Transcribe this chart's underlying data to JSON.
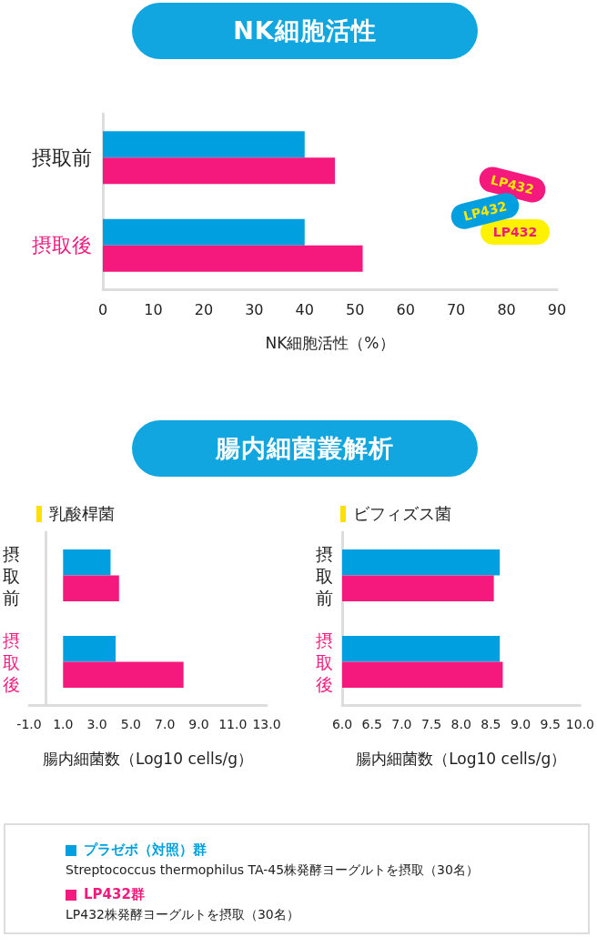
{
  "chart_data": [
    {
      "type": "bar",
      "orientation": "horizontal",
      "title": "NK細胞活性",
      "xlabel": "NK細胞活性（%）",
      "categories": [
        "摂取前",
        "摂取後"
      ],
      "series": [
        {
          "name": "プラゼボ（対照）群",
          "color": "#00a0e0",
          "values": [
            40,
            40
          ]
        },
        {
          "name": "LP432群",
          "color": "#f5197d",
          "values": [
            46,
            51.5
          ]
        }
      ],
      "xlim": [
        0,
        90
      ],
      "xticks": [
        0,
        10,
        20,
        30,
        40,
        50,
        60,
        70,
        80,
        90
      ],
      "grid": false,
      "legend": "bottom",
      "annotations": [
        "LP432",
        "LP432",
        "LP432",
        "Streptococcus thermophilus TA-45株発酵ヨーグルトを摂取（30名）",
        "LP432株発酵ヨーグルトを摂取（30名）"
      ]
    },
    {
      "type": "bar",
      "orientation": "horizontal",
      "title": "乳酸桿菌",
      "xlabel": "腸内細菌数（Log10 cells/g）",
      "categories": [
        "摂取前",
        "摂取後"
      ],
      "series": [
        {
          "color": "#00a0e0",
          "base": [
            1,
            1
          ],
          "values": [
            2.8,
            3.1
          ]
        },
        {
          "color": "#f5197d",
          "base": [
            1,
            1
          ],
          "values": [
            3.3,
            7.1
          ]
        }
      ],
      "xlim": [
        -1,
        13
      ],
      "xticks": [
        {
          "value": -1,
          "label": "-1.0"
        },
        {
          "value": 1,
          "label": "1.0"
        },
        {
          "value": 3,
          "label": "3.0"
        },
        {
          "value": 5,
          "label": "5.0"
        },
        {
          "value": 7,
          "label": "7.0"
        },
        {
          "value": 9,
          "label": "9.0"
        },
        {
          "value": 11,
          "label": "11.0"
        },
        {
          "value": 13,
          "label": "13.0"
        }
      ],
      "grid": false,
      "annotations": [
        "腸内細菌叢解析"
      ]
    },
    {
      "type": "bar",
      "orientation": "horizontal",
      "title": "ビフィズス菌",
      "xlabel": "腸内細菌数（Log10 cells/g）",
      "categories": [
        "摂取前",
        "摂取後"
      ],
      "series": [
        {
          "color": "#00a0e0",
          "values": [
            8.65,
            8.65
          ]
        },
        {
          "color": "#f5197d",
          "values": [
            8.55,
            8.7
          ]
        }
      ],
      "xlim": [
        6,
        10
      ],
      "xticks": [
        {
          "value": 6,
          "label": "6.0"
        },
        {
          "value": 6.5,
          "label": "6.5"
        },
        {
          "value": 7,
          "label": "7.0"
        },
        {
          "value": 7.5,
          "label": "7.5"
        },
        {
          "value": 8,
          "label": "8.0"
        },
        {
          "value": 8.5,
          "label": "8.5"
        },
        {
          "value": 9,
          "label": "9.0"
        },
        {
          "value": 9.5,
          "label": "9.5"
        },
        {
          "value": 10,
          "label": "10.0"
        }
      ],
      "grid": false
    }
  ]
}
